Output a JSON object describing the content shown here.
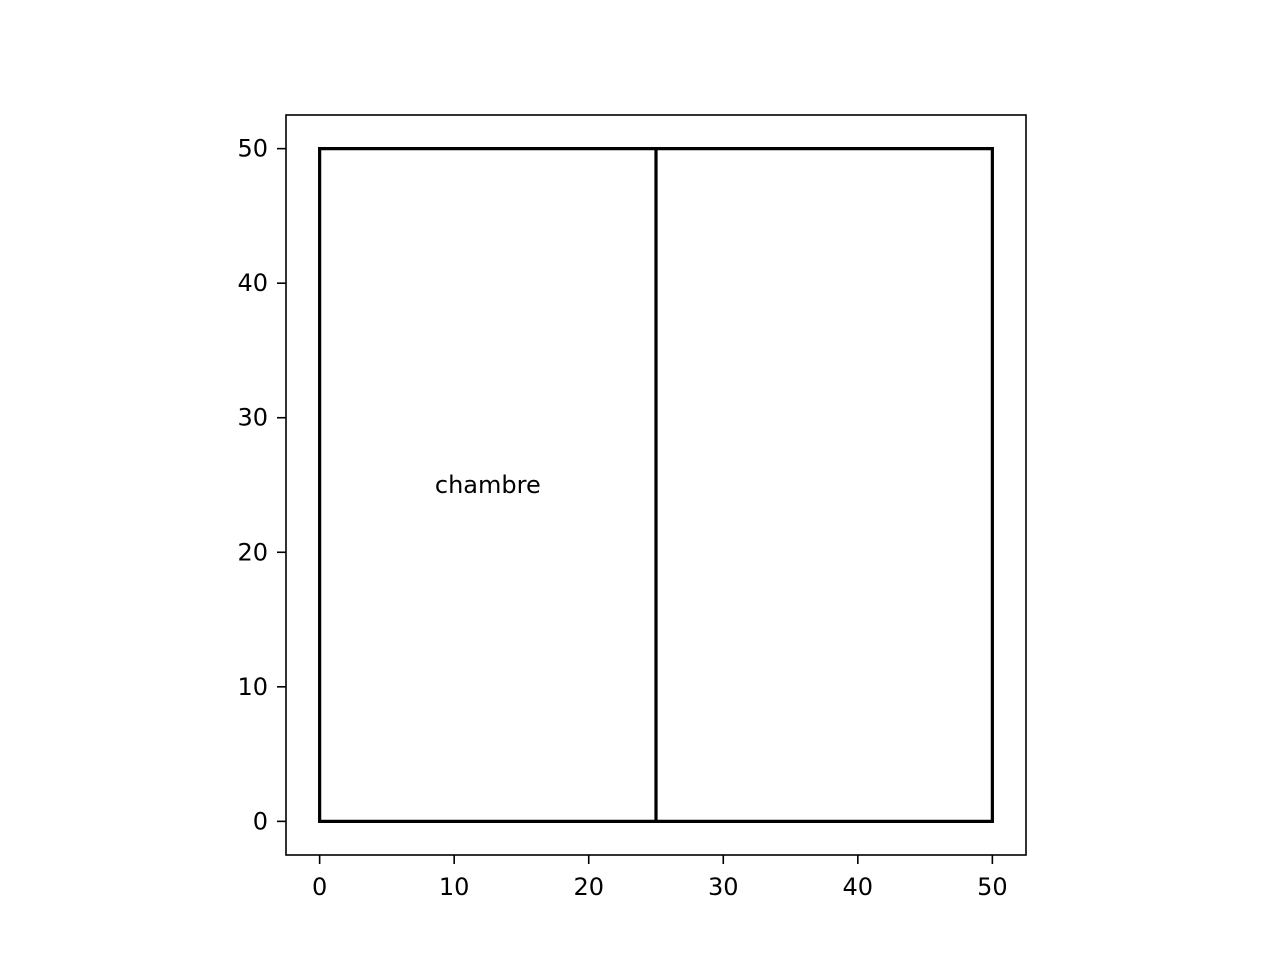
{
  "chart_data": {
    "type": "line",
    "title": "",
    "xlabel": "",
    "ylabel": "",
    "xlim": [
      -2.5,
      52.5
    ],
    "ylim": [
      -2.5,
      52.5
    ],
    "x_ticks": [
      0,
      10,
      20,
      30,
      40,
      50
    ],
    "y_ticks": [
      0,
      10,
      20,
      30,
      40,
      50
    ],
    "grid": false,
    "aspect": "equal",
    "series": [
      {
        "color": "#000000",
        "points": [
          [
            0,
            0
          ],
          [
            50,
            0
          ],
          [
            50,
            50
          ],
          [
            0,
            50
          ],
          [
            0,
            0
          ]
        ]
      },
      {
        "color": "#000000",
        "points": [
          [
            25,
            0
          ],
          [
            25,
            50
          ]
        ]
      }
    ],
    "annotations": [
      {
        "text": "chambre",
        "x": 12.5,
        "y": 25
      }
    ]
  },
  "colors": {
    "line": "#000000",
    "axes": "#000000",
    "background": "#ffffff"
  }
}
